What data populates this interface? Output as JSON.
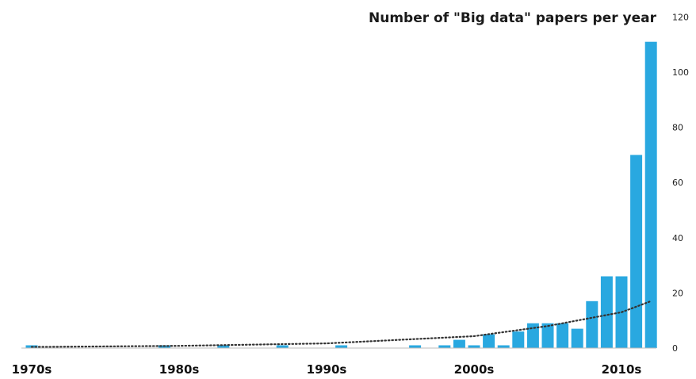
{
  "chart_data": {
    "type": "bar",
    "title": "Number of \"Big data\" papers per year",
    "xlabel": "",
    "ylabel": "",
    "x_range": [
      1970,
      2013
    ],
    "ylim": [
      0,
      120
    ],
    "y_ticks": [
      0,
      20,
      40,
      60,
      80,
      100,
      120
    ],
    "y_axis_position": "right",
    "x_ticks": [
      {
        "year": 1970,
        "label": "1970s"
      },
      {
        "year": 1980,
        "label": "1980s"
      },
      {
        "year": 1990,
        "label": "1990s"
      },
      {
        "year": 2000,
        "label": "2000s"
      },
      {
        "year": 2010,
        "label": "2010s"
      }
    ],
    "grid": false,
    "legend": "none",
    "series": [
      {
        "color": "#29a8e0",
        "points": [
          {
            "year": 1970,
            "value": 1
          },
          {
            "year": 1979,
            "value": 1
          },
          {
            "year": 1983,
            "value": 1
          },
          {
            "year": 1987,
            "value": 1
          },
          {
            "year": 1991,
            "value": 1
          },
          {
            "year": 1996,
            "value": 1
          },
          {
            "year": 1998,
            "value": 1
          },
          {
            "year": 1999,
            "value": 3
          },
          {
            "year": 2000,
            "value": 1
          },
          {
            "year": 2001,
            "value": 5
          },
          {
            "year": 2002,
            "value": 1
          },
          {
            "year": 2003,
            "value": 6
          },
          {
            "year": 2004,
            "value": 9
          },
          {
            "year": 2005,
            "value": 9
          },
          {
            "year": 2006,
            "value": 9
          },
          {
            "year": 2007,
            "value": 7
          },
          {
            "year": 2008,
            "value": 17
          },
          {
            "year": 2009,
            "value": 26
          },
          {
            "year": 2010,
            "value": 26
          },
          {
            "year": 2011,
            "value": 70
          },
          {
            "year": 2012,
            "value": 111
          }
        ]
      }
    ],
    "trendline": {
      "type": "exponential",
      "style": "dotted",
      "color": "#333333",
      "points": [
        {
          "year": 1970,
          "value": 0.4
        },
        {
          "year": 1980,
          "value": 0.8
        },
        {
          "year": 1990,
          "value": 1.7
        },
        {
          "year": 2000,
          "value": 4.3
        },
        {
          "year": 2005,
          "value": 8
        },
        {
          "year": 2010,
          "value": 13
        },
        {
          "year": 2012,
          "value": 17
        }
      ]
    }
  }
}
